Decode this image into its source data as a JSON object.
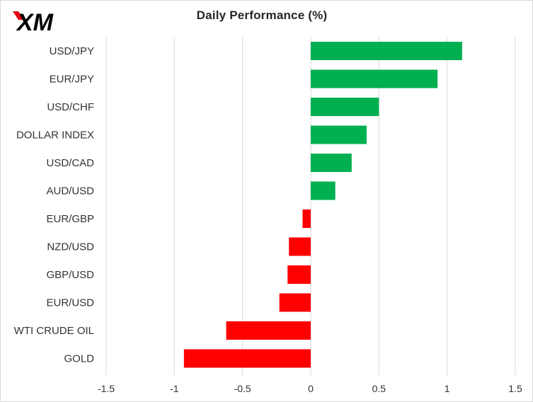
{
  "brand": {
    "logo_text": "XM",
    "logo_color": "#000000",
    "accent_color": "#e30613"
  },
  "chart_data": {
    "type": "bar",
    "orientation": "horizontal",
    "title": "Daily Performance (%)",
    "xlabel": "",
    "ylabel": "",
    "categories": [
      "USD/JPY",
      "EUR/JPY",
      "USD/CHF",
      "DOLLAR INDEX",
      "USD/CAD",
      "AUD/USD",
      "EUR/GBP",
      "NZD/USD",
      "GBP/USD",
      "EUR/USD",
      "WTI CRUDE OIL",
      "GOLD"
    ],
    "values": [
      1.11,
      0.93,
      0.5,
      0.41,
      0.3,
      0.18,
      -0.06,
      -0.16,
      -0.17,
      -0.23,
      -0.62,
      -0.93
    ],
    "xlim": [
      -1.5,
      1.5
    ],
    "xticks": [
      -1.5,
      -1,
      -0.5,
      0,
      0.5,
      1,
      1.5
    ],
    "xtick_labels": [
      "-1.5",
      "-1",
      "-0.5",
      "0",
      "0.5",
      "1",
      "1.5"
    ],
    "grid": "vertical",
    "legend": "none",
    "colors": {
      "positive": "#00b050",
      "negative": "#ff0000",
      "grid": "#d9d9d9",
      "text": "#333333"
    }
  }
}
